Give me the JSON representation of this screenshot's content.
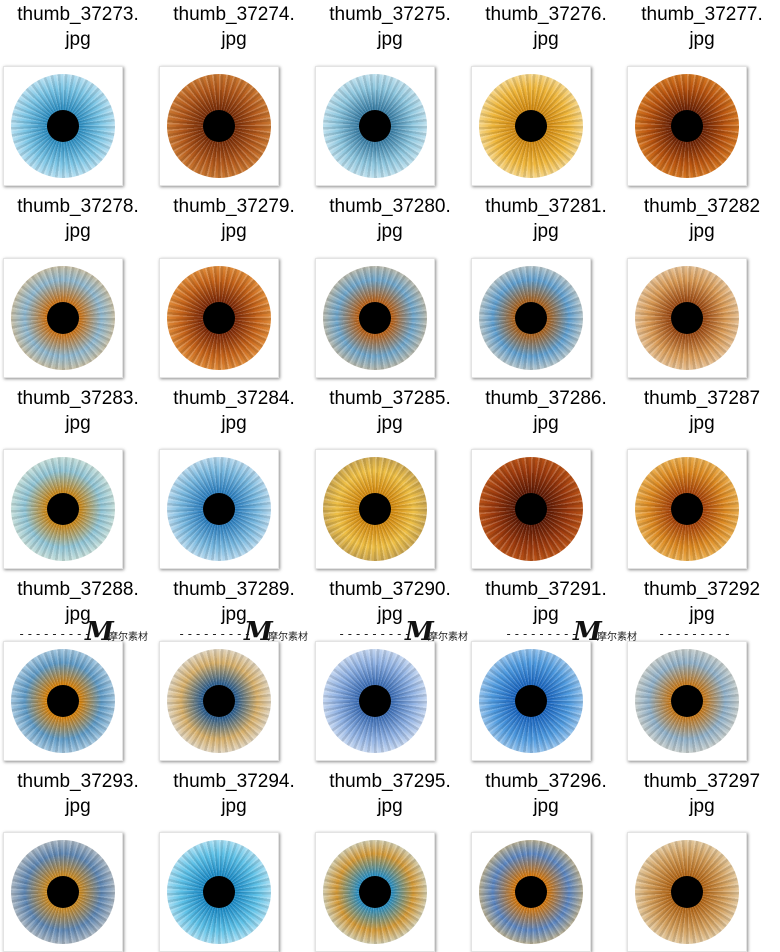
{
  "files": [
    {
      "name_line1": "thumb_37273.",
      "name_line2": "jpg",
      "iris_colors": [
        "#2f8fc2",
        "#7cc6e6",
        "#d9eef7"
      ]
    },
    {
      "name_line1": "thumb_37274.",
      "name_line2": "jpg",
      "iris_colors": [
        "#7a2e08",
        "#b45a1c",
        "#d78a3f"
      ]
    },
    {
      "name_line1": "thumb_37275.",
      "name_line2": "jpg",
      "iris_colors": [
        "#3b7fa6",
        "#8ec7df",
        "#dbeff6"
      ]
    },
    {
      "name_line1": "thumb_37276.",
      "name_line2": "jpg",
      "iris_colors": [
        "#d18a12",
        "#f0b73b",
        "#f7e6b3"
      ]
    },
    {
      "name_line1": "thumb_37277.",
      "name_line2": "jpg",
      "iris_colors": [
        "#6e2406",
        "#b9540f",
        "#e58c2e"
      ]
    },
    {
      "name_line1": "thumb_37278.",
      "name_line2": "jpg",
      "iris_colors": [
        "#c9741a",
        "#8db7d0",
        "#e9c28a"
      ]
    },
    {
      "name_line1": "thumb_37279.",
      "name_line2": "jpg",
      "iris_colors": [
        "#7d2a08",
        "#c6641a",
        "#eea24c"
      ]
    },
    {
      "name_line1": "thumb_37280.",
      "name_line2": "jpg",
      "iris_colors": [
        "#b7621a",
        "#6ea6cc",
        "#e4c49a"
      ]
    },
    {
      "name_line1": "thumb_37281.",
      "name_line2": "jpg",
      "iris_colors": [
        "#a8621f",
        "#5f9fd0",
        "#e8dcc8"
      ]
    },
    {
      "name_line1": "thumb_37282",
      "name_line2": "jpg",
      "iris_colors": [
        "#9b4a14",
        "#d99a55",
        "#ecd6b8"
      ]
    },
    {
      "name_line1": "thumb_37283.",
      "name_line2": "jpg",
      "iris_colors": [
        "#c8881c",
        "#8fc4d6",
        "#e6eedc"
      ]
    },
    {
      "name_line1": "thumb_37284.",
      "name_line2": "jpg",
      "iris_colors": [
        "#2d7fbf",
        "#79b9e0",
        "#dcecf6"
      ]
    },
    {
      "name_line1": "thumb_37285.",
      "name_line2": "jpg",
      "iris_colors": [
        "#d38a10",
        "#efc046",
        "#b89a5a"
      ]
    },
    {
      "name_line1": "thumb_37286.",
      "name_line2": "jpg",
      "iris_colors": [
        "#5e1a05",
        "#9d3a0d",
        "#c9611d"
      ]
    },
    {
      "name_line1": "thumb_37287",
      "name_line2": "jpg",
      "iris_colors": [
        "#a7450a",
        "#dd8a22",
        "#f0c26a"
      ]
    },
    {
      "name_line1": "thumb_37288.",
      "name_line2": "jpg",
      "iris_colors": [
        "#d4820f",
        "#5e9ac6",
        "#cfe3ef"
      ]
    },
    {
      "name_line1": "thumb_37289.",
      "name_line2": "jpg",
      "iris_colors": [
        "#2d5f8f",
        "#d8b06a",
        "#e4e9ef"
      ]
    },
    {
      "name_line1": "thumb_37290.",
      "name_line2": "jpg",
      "iris_colors": [
        "#3e6fb6",
        "#8fb1e3",
        "#e4ecf8"
      ]
    },
    {
      "name_line1": "thumb_37291.",
      "name_line2": "jpg",
      "iris_colors": [
        "#1c67c0",
        "#4f9be0",
        "#bcd9f3"
      ]
    },
    {
      "name_line1": "thumb_37292",
      "name_line2": "jpg",
      "iris_colors": [
        "#c57a1e",
        "#8fb0c9",
        "#e8e0cf"
      ]
    },
    {
      "name_line1": "thumb_37293.",
      "name_line2": "jpg",
      "iris_colors": [
        "#c98a25",
        "#5d86b3",
        "#d8d4cc"
      ]
    },
    {
      "name_line1": "thumb_37294.",
      "name_line2": "jpg",
      "iris_colors": [
        "#1d8cc7",
        "#5fc2e8",
        "#d2eef8"
      ]
    },
    {
      "name_line1": "thumb_37295.",
      "name_line2": "jpg",
      "iris_colors": [
        "#2e8fbf",
        "#d59a37",
        "#cfe9f2"
      ]
    },
    {
      "name_line1": "thumb_37296.",
      "name_line2": "jpg",
      "iris_colors": [
        "#d17812",
        "#5b86c2",
        "#efc777"
      ]
    },
    {
      "name_line1": "thumb_37297",
      "name_line2": "jpg",
      "iris_colors": [
        "#b26617",
        "#d3a05e",
        "#ece0c4"
      ]
    }
  ],
  "watermark": {
    "dashes": "---------",
    "logo_mark": "M",
    "brand_text": "摩尔素材"
  }
}
